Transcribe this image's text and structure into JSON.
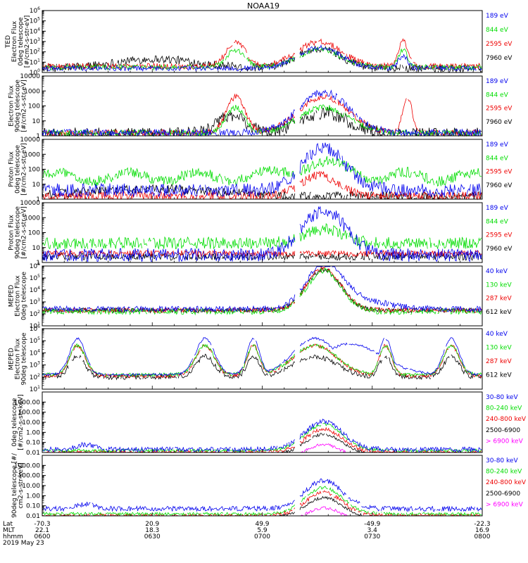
{
  "title": "NOAA19",
  "colors": {
    "black": "#000000",
    "red": "#ee0000",
    "green": "#00dd00",
    "blue": "#0000ee",
    "magenta": "#ff00ff"
  },
  "chart_data": [
    {
      "type": "line",
      "ylabel": [
        "TED",
        "Electron Flux",
        "0deg telescope",
        "[#/cm2-s-str-eV]"
      ],
      "ylim": [
        1,
        1000000
      ],
      "yscale": "log",
      "yticks": [
        "10^0",
        "10^1",
        "10^2",
        "10^3",
        "10^4",
        "10^5",
        "10^6"
      ],
      "series": [
        {
          "name": "7960 eV",
          "color": "black"
        },
        {
          "name": "2595 eV",
          "color": "red"
        },
        {
          "name": "844 eV",
          "color": "green"
        },
        {
          "name": "189 eV",
          "color": "blue"
        }
      ]
    },
    {
      "type": "line",
      "ylabel": [
        "Electron Flux",
        "90deg telescope",
        "[#/cm2-s-str-eV]"
      ],
      "ylim": [
        1,
        10000
      ],
      "yscale": "log",
      "yticks": [
        "1",
        "10",
        "100",
        "1000",
        "10000"
      ],
      "series": [
        {
          "name": "7960 eV",
          "color": "black"
        },
        {
          "name": "2595 eV",
          "color": "red"
        },
        {
          "name": "844 eV",
          "color": "green"
        },
        {
          "name": "189 eV",
          "color": "blue"
        }
      ]
    },
    {
      "type": "line",
      "ylabel": [
        "Proton Flux",
        "0deg telescope",
        "[#/cm2-s-str-eV]"
      ],
      "ylim": [
        1,
        10000
      ],
      "yscale": "log",
      "yticks": [
        "1",
        "10",
        "100",
        "1000",
        "10000"
      ],
      "series": [
        {
          "name": "7960 eV",
          "color": "black"
        },
        {
          "name": "2595 eV",
          "color": "red"
        },
        {
          "name": "844 eV",
          "color": "green"
        },
        {
          "name": "189 eV",
          "color": "blue"
        }
      ]
    },
    {
      "type": "line",
      "ylabel": [
        "Proton Flux",
        "90deg telescope",
        "[#/cm2-s-str-eV]"
      ],
      "ylim": [
        1,
        10000
      ],
      "yscale": "log",
      "yticks": [
        "1",
        "10",
        "100",
        "1000",
        "10000"
      ],
      "series": [
        {
          "name": "7960 eV",
          "color": "black"
        },
        {
          "name": "2595 eV",
          "color": "red"
        },
        {
          "name": "844 eV",
          "color": "green"
        },
        {
          "name": "189 eV",
          "color": "blue"
        }
      ]
    },
    {
      "type": "line",
      "ylabel": [
        "MEPED",
        "Electron Flux",
        "0deg telescope"
      ],
      "ylim": [
        10,
        1000000
      ],
      "yscale": "log",
      "yticks": [
        "10^1",
        "10^2",
        "10^3",
        "10^4",
        "10^5",
        "10^6"
      ],
      "series": [
        {
          "name": "612 keV",
          "color": "black"
        },
        {
          "name": "287 keV",
          "color": "red"
        },
        {
          "name": "130 keV",
          "color": "green"
        },
        {
          "name": "40 keV",
          "color": "blue"
        }
      ]
    },
    {
      "type": "line",
      "ylabel": [
        "MEPED",
        "Electron Flux",
        "90deg telescope"
      ],
      "ylim": [
        10,
        1000000
      ],
      "yscale": "log",
      "yticks": [
        "10^1",
        "10^2",
        "10^3",
        "10^4",
        "10^5",
        "10^6"
      ],
      "series": [
        {
          "name": "612 keV",
          "color": "black"
        },
        {
          "name": "287 keV",
          "color": "red"
        },
        {
          "name": "130 keV",
          "color": "green"
        },
        {
          "name": "40 keV",
          "color": "blue"
        }
      ]
    },
    {
      "type": "line",
      "ylabel": [
        "0deg telescope",
        "[#/cm2-s-str-keV]"
      ],
      "ylim": [
        0.01,
        10000
      ],
      "yscale": "log",
      "yticks": [
        "0.01",
        "0.10",
        "1.00",
        "10.00",
        "100.00",
        "1000.00"
      ],
      "series": [
        {
          "name": "> 6900 keV",
          "color": "magenta"
        },
        {
          "name": "2500-6900",
          "color": "black"
        },
        {
          "name": "240-800 keV",
          "color": "red"
        },
        {
          "name": "80-240 keV",
          "color": "green"
        },
        {
          "name": "30-80 keV",
          "color": "blue"
        }
      ]
    },
    {
      "type": "line",
      "ylabel": [
        "90deg telescope [#/",
        "cm2-s-str-keV]"
      ],
      "ylim": [
        0.01,
        10000
      ],
      "yscale": "log",
      "yticks": [
        "0.01",
        "0.10",
        "1.00",
        "10.00",
        "100.00",
        "1000.00"
      ],
      "series": [
        {
          "name": "> 6900 keV",
          "color": "magenta"
        },
        {
          "name": "2500-6900",
          "color": "black"
        },
        {
          "name": "240-800 keV",
          "color": "red"
        },
        {
          "name": "80-240 keV",
          "color": "green"
        },
        {
          "name": "30-80 keV",
          "color": "blue"
        }
      ]
    }
  ],
  "x_axis": {
    "row_labels": [
      "Lat",
      "MLT",
      "hhmm"
    ],
    "date": "2019 May 23",
    "ticks": [
      {
        "lat": "-70.3",
        "mlt": "22.1",
        "hhmm": "0600"
      },
      {
        "lat": "20.9",
        "mlt": "18.3",
        "hhmm": "0630"
      },
      {
        "lat": "49.9",
        "mlt": "5.9",
        "hhmm": "0700"
      },
      {
        "lat": "-49.9",
        "mlt": "3.4",
        "hhmm": "0730"
      },
      {
        "lat": "-22.3",
        "mlt": "16.9",
        "hhmm": "0800"
      }
    ]
  }
}
